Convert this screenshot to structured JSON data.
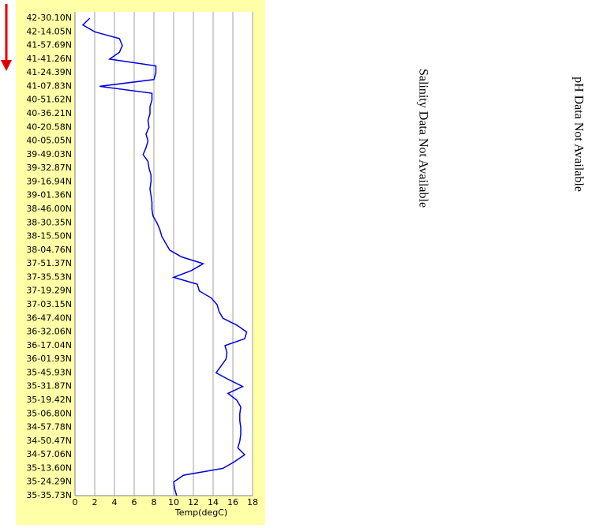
{
  "chart_data": {
    "type": "line",
    "orientation": "horizontal",
    "x_label": "Temp(degC)",
    "categories": [
      "42-30.10N",
      null,
      "42-14.05N",
      null,
      "41-57.69N",
      null,
      "41-41.26N",
      null,
      "41-24.39N",
      null,
      "41-07.83N",
      null,
      "40-51.62N",
      null,
      "40-36.21N",
      null,
      "40-20.58N",
      null,
      "40-05.05N",
      null,
      "39-49.03N",
      null,
      "39-32.87N",
      null,
      "39-16.94N",
      null,
      "39-01.36N",
      null,
      "38-46.00N",
      null,
      "38-30.35N",
      null,
      "38-15.50N",
      null,
      "38-04.76N",
      null,
      "37-51.37N",
      null,
      "37-35.53N",
      null,
      "37-19.29N",
      null,
      "37-03.15N",
      null,
      "36-47.40N",
      null,
      "36-32.06N",
      null,
      "36-17.04N",
      null,
      "36-01.93N",
      null,
      "35-45.93N",
      null,
      "35-31.87N",
      null,
      "35-19.42N",
      null,
      "35-06.80N",
      null,
      "34-57.78N",
      null,
      "34-50.47N",
      null,
      "34-57.06N",
      null,
      "35-13.60N",
      null,
      "35-24.29N",
      null,
      "35-35.73N"
    ],
    "values": [
      1.5,
      0.8,
      2.0,
      4.5,
      4.8,
      4.5,
      3.5,
      8.2,
      8.2,
      8.0,
      2.5,
      7.8,
      7.8,
      7.6,
      7.6,
      7.4,
      7.5,
      7.2,
      7.4,
      7.2,
      6.9,
      7.4,
      7.5,
      7.7,
      7.7,
      7.6,
      7.7,
      7.8,
      7.8,
      7.9,
      8.3,
      8.6,
      8.8,
      9.2,
      9.6,
      10.8,
      13.0,
      11.8,
      10.0,
      12.4,
      12.6,
      13.8,
      14.4,
      14.6,
      15.0,
      16.4,
      17.4,
      17.2,
      15.2,
      15.4,
      15.3,
      14.8,
      14.3,
      15.6,
      17.0,
      15.5,
      16.4,
      16.8,
      16.7,
      16.7,
      16.8,
      16.8,
      16.7,
      16.5,
      17.2,
      16.2,
      15.0,
      11.0,
      10.0,
      10.1,
      10.3
    ],
    "color": "#0000e0",
    "xlim": [
      0,
      18
    ],
    "xticks": [
      0,
      2,
      4,
      6,
      8,
      10,
      12,
      14,
      16,
      18
    ],
    "grid": true
  },
  "messages": [
    "Salinity Data Not Available",
    "pH Data Not Available"
  ]
}
